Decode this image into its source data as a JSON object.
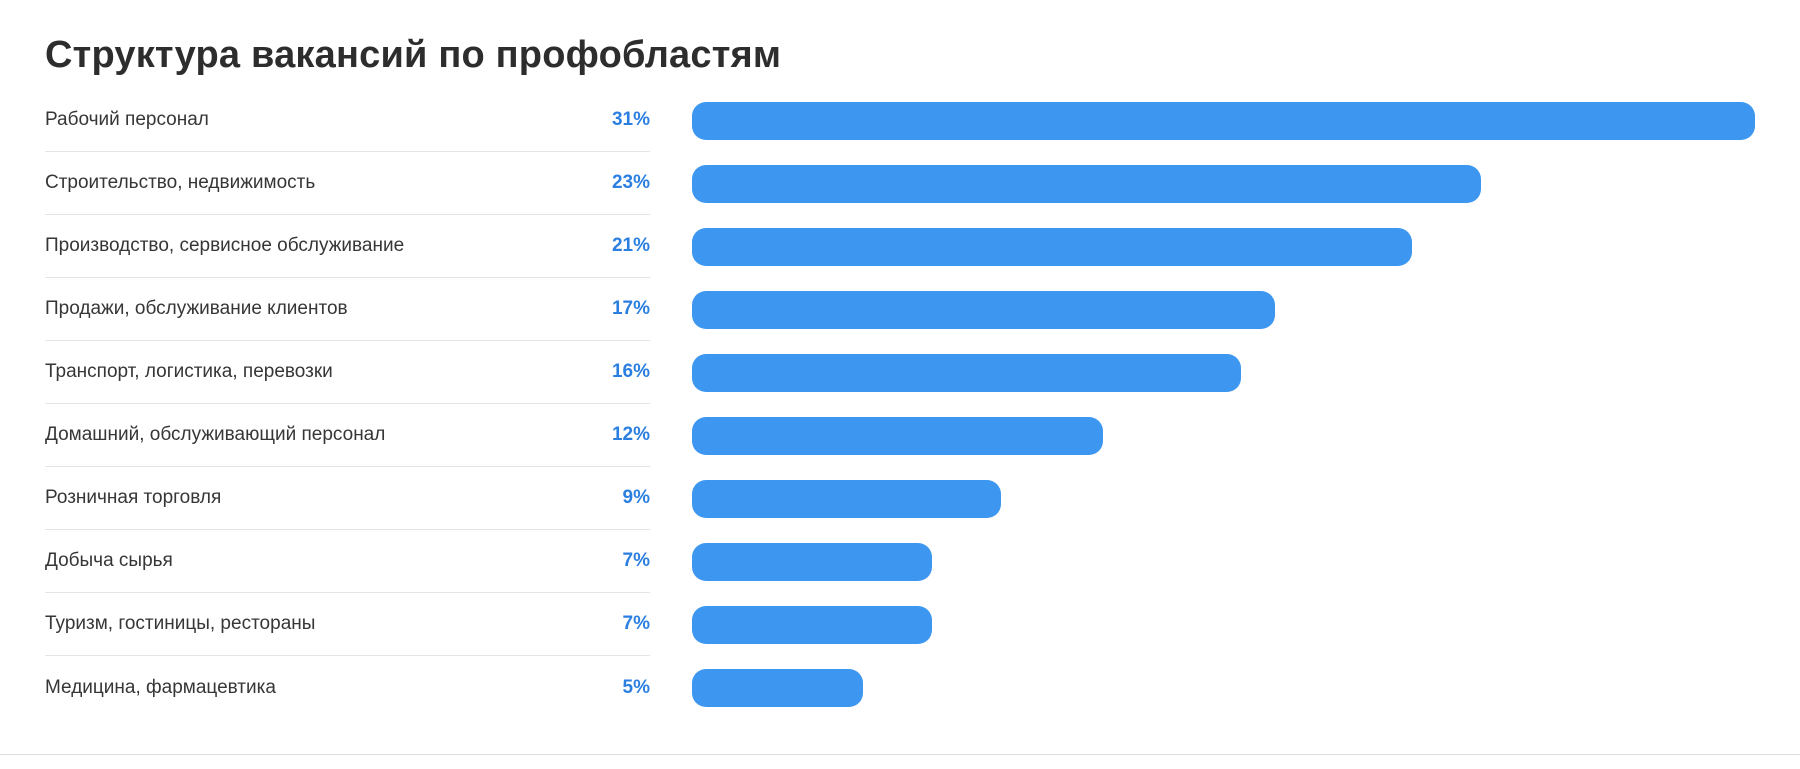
{
  "title": "Структура вакансий по профобластям",
  "colors": {
    "bar": "#3d97f0",
    "percent_text": "#2b7fe0",
    "title_text": "#2d2d2d",
    "label_text": "#363636",
    "separator": "#e2e5e8",
    "separator_strong": "#d9dee2"
  },
  "chart_data": {
    "type": "bar",
    "orientation": "horizontal",
    "title": "Структура вакансий по профобластям",
    "unit": "%",
    "max_value": 31,
    "grid": false,
    "legend": false,
    "categories": [
      "Рабочий персонал",
      "Строительство, недвижимость",
      "Производство, сервисное обслуживание",
      "Продажи, обслуживание клиентов",
      "Транспорт, логистика, перевозки",
      "Домашний, обслуживающий персонал",
      "Розничная торговля",
      "Добыча сырья",
      "Туризм, гостиницы, рестораны",
      "Медицина, фармацевтика"
    ],
    "values": [
      31,
      23,
      21,
      17,
      16,
      12,
      9,
      7,
      7,
      5
    ]
  }
}
